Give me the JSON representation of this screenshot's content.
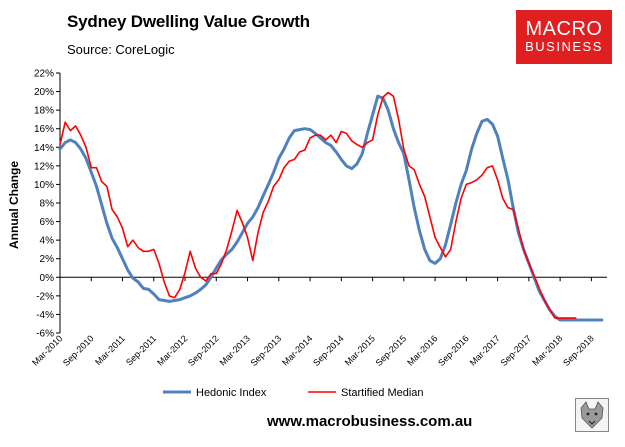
{
  "header": {
    "title": "Sydney Dwelling Value Growth",
    "source": "Source: CoreLogic"
  },
  "logo": {
    "line1": "MACRO",
    "line2": "BUSINESS"
  },
  "footer": {
    "website": "www.macrobusiness.com.au"
  },
  "colors": {
    "hedonic": "#4f81bd",
    "median": "#ff0000",
    "logo_bg": "#e02020"
  },
  "chart_data": {
    "type": "line",
    "title": "Sydney Dwelling Value Growth",
    "ylabel": "Annual Change",
    "xlabel": "",
    "ylim": [
      -6,
      22
    ],
    "yticks": [
      -6,
      -4,
      -2,
      0,
      2,
      4,
      6,
      8,
      10,
      12,
      14,
      16,
      18,
      20,
      22
    ],
    "ytick_labels": [
      "-6%",
      "-4%",
      "-2%",
      "0%",
      "2%",
      "4%",
      "6%",
      "8%",
      "10%",
      "12%",
      "14%",
      "16%",
      "18%",
      "20%",
      "22%"
    ],
    "xlim": [
      0,
      105
    ],
    "xticks": [
      0,
      6,
      12,
      18,
      24,
      30,
      36,
      42,
      48,
      54,
      60,
      66,
      72,
      78,
      84,
      90,
      96,
      102
    ],
    "xtick_labels": [
      "Mar-2010",
      "Sep-2010",
      "Mar-2011",
      "Sep-2011",
      "Mar-2012",
      "Sep-2012",
      "Mar-2013",
      "Sep-2013",
      "Mar-2014",
      "Sep-2014",
      "Mar-2015",
      "Sep-2015",
      "Mar-2016",
      "Sep-2016",
      "Mar-2017",
      "Sep-2017",
      "Mar-2018",
      "Sep-2018"
    ],
    "legend_position": "bottom",
    "grid": false,
    "series": [
      {
        "name": "Hedonic Index",
        "x": [
          0,
          1,
          2,
          3,
          4,
          5,
          6,
          7,
          8,
          9,
          10,
          11,
          12,
          13,
          14,
          15,
          16,
          17,
          18,
          19,
          20,
          21,
          22,
          23,
          24,
          25,
          26,
          27,
          28,
          29,
          30,
          31,
          32,
          33,
          34,
          35,
          36,
          37,
          38,
          39,
          40,
          41,
          42,
          43,
          44,
          45,
          46,
          47,
          48,
          49,
          50,
          51,
          52,
          53,
          54,
          55,
          56,
          57,
          58,
          59,
          60,
          61,
          62,
          63,
          64,
          65,
          66,
          67,
          68,
          69,
          70,
          71,
          72,
          73,
          74,
          75,
          76,
          77,
          78,
          79,
          80,
          81,
          82,
          83,
          84,
          85,
          86,
          87,
          88,
          89,
          90,
          91,
          92,
          93,
          94,
          95,
          96,
          97,
          98,
          99,
          100,
          101,
          102,
          103,
          104
        ],
        "values": [
          13.8,
          14.5,
          14.8,
          14.5,
          13.8,
          12.8,
          11.3,
          9.8,
          7.8,
          5.8,
          4.2,
          3.2,
          2.0,
          0.8,
          -0.1,
          -0.5,
          -1.2,
          -1.3,
          -1.8,
          -2.4,
          -2.5,
          -2.6,
          -2.5,
          -2.4,
          -2.2,
          -2.0,
          -1.7,
          -1.3,
          -0.8,
          0.0,
          1.0,
          1.9,
          2.5,
          3.0,
          3.8,
          4.8,
          5.8,
          6.5,
          7.5,
          8.8,
          10.0,
          11.3,
          12.8,
          13.8,
          15.0,
          15.8,
          15.9,
          16.0,
          15.9,
          15.5,
          15.0,
          14.5,
          14.2,
          13.5,
          12.7,
          12.0,
          11.7,
          12.2,
          13.3,
          15.5,
          17.5,
          19.5,
          19.3,
          18.0,
          16.0,
          14.5,
          13.3,
          10.5,
          7.5,
          5.0,
          3.0,
          1.8,
          1.5,
          2.0,
          3.5,
          5.7,
          8.0,
          10.0,
          11.5,
          13.8,
          15.5,
          16.8,
          17.0,
          16.5,
          15.2,
          12.8,
          10.5,
          7.5,
          4.8,
          3.0,
          1.5,
          0.0,
          -1.5,
          -2.5,
          -3.5,
          -4.2,
          -4.6,
          -4.6,
          -4.6,
          -4.6,
          -4.6,
          -4.6,
          -4.6,
          -4.6,
          -4.6
        ],
        "color": "#4f81bd"
      },
      {
        "name": "Startified Median",
        "x": [
          0,
          1,
          2,
          3,
          4,
          5,
          6,
          7,
          8,
          9,
          10,
          11,
          12,
          13,
          14,
          15,
          16,
          17,
          18,
          19,
          20,
          21,
          22,
          23,
          24,
          25,
          26,
          27,
          28,
          29,
          30,
          31,
          32,
          33,
          34,
          35,
          36,
          37,
          38,
          39,
          40,
          41,
          42,
          43,
          44,
          45,
          46,
          47,
          48,
          49,
          50,
          51,
          52,
          53,
          54,
          55,
          56,
          57,
          58,
          59,
          60,
          61,
          62,
          63,
          64,
          65,
          66,
          67,
          68,
          69,
          70,
          71,
          72,
          73,
          74,
          75,
          76,
          77,
          78,
          79,
          80,
          81,
          82,
          83,
          84,
          85,
          86,
          87,
          88,
          89,
          90,
          91,
          92,
          93,
          94,
          95,
          96,
          97,
          98,
          99
        ],
        "values": [
          14.3,
          16.7,
          15.8,
          16.3,
          15.3,
          14.0,
          11.8,
          11.8,
          10.3,
          9.8,
          7.3,
          6.5,
          5.3,
          3.3,
          4.0,
          3.2,
          2.8,
          2.8,
          3.0,
          1.5,
          -0.5,
          -2.0,
          -2.2,
          -1.3,
          0.5,
          2.8,
          1.0,
          0.0,
          -0.4,
          0.4,
          0.4,
          1.5,
          3.0,
          5.0,
          7.2,
          5.9,
          4.3,
          1.8,
          4.8,
          7.0,
          8.2,
          9.8,
          10.5,
          11.8,
          12.5,
          12.7,
          13.5,
          13.7,
          15.0,
          15.3,
          15.3,
          14.8,
          15.3,
          14.5,
          15.7,
          15.5,
          14.7,
          14.3,
          14.0,
          14.5,
          14.8,
          17.5,
          19.4,
          19.9,
          19.5,
          17.0,
          13.8,
          12.0,
          11.6,
          10.0,
          8.7,
          6.5,
          4.3,
          3.2,
          2.2,
          3.0,
          6.0,
          8.5,
          10.0,
          10.2,
          10.5,
          11.0,
          11.8,
          12.0,
          10.5,
          8.5,
          7.5,
          7.3,
          5.2,
          3.0,
          1.5,
          0.2,
          -1.2,
          -2.5,
          -3.5,
          -4.4,
          -4.4,
          -4.4,
          -4.4,
          -4.4
        ],
        "color": "#ff0000"
      }
    ]
  }
}
